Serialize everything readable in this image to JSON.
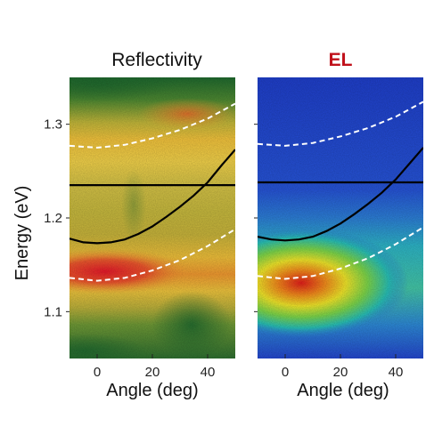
{
  "chart_data": [
    {
      "type": "heatmap",
      "title": "Reflectivity",
      "title_color": "#111111",
      "xlabel": "Angle (deg)",
      "ylabel": "Energy (eV)",
      "xlim": [
        -10,
        50
      ],
      "ylim": [
        1.05,
        1.35
      ],
      "xticks": [
        0,
        20,
        40
      ],
      "yticks": [
        1.1,
        1.2,
        1.3
      ],
      "ytick_labels": [
        "1.1",
        "1.2",
        "1.3"
      ],
      "colormap": "green-yellow-red",
      "background_color": "#1f6a2e",
      "grid": false,
      "curves": [
        {
          "name": "",
          "style": "dashed",
          "color": "#ffffff",
          "x": [
            -10,
            0,
            10,
            20,
            30,
            40,
            50
          ],
          "y": [
            1.277,
            1.275,
            1.278,
            1.285,
            1.294,
            1.306,
            1.322
          ]
        },
        {
          "name": "",
          "style": "solid",
          "color": "#000000",
          "x": [
            -10,
            0,
            10,
            20,
            30,
            40,
            50
          ],
          "y": [
            1.235,
            1.235,
            1.235,
            1.235,
            1.235,
            1.235,
            1.235
          ]
        },
        {
          "name": "",
          "style": "solid",
          "color": "#000000",
          "x": [
            -10,
            -5,
            0,
            5,
            10,
            15,
            20,
            25,
            30,
            35,
            40,
            45,
            50
          ],
          "y": [
            1.178,
            1.174,
            1.173,
            1.174,
            1.177,
            1.183,
            1.191,
            1.201,
            1.212,
            1.224,
            1.238,
            1.256,
            1.273
          ]
        },
        {
          "name": "",
          "style": "dashed",
          "color": "#ffffff",
          "x": [
            -10,
            0,
            10,
            20,
            30,
            40,
            50
          ],
          "y": [
            1.136,
            1.133,
            1.136,
            1.144,
            1.155,
            1.17,
            1.188
          ]
        }
      ]
    },
    {
      "type": "heatmap",
      "title": "EL",
      "title_color": "#c0101a",
      "xlabel": "Angle (deg)",
      "ylabel": "",
      "xlim": [
        -10,
        50
      ],
      "ylim": [
        1.05,
        1.35
      ],
      "xticks": [
        0,
        20,
        40
      ],
      "yticks": [
        1.1,
        1.2,
        1.3
      ],
      "ytick_labels": [
        "",
        "",
        ""
      ],
      "colormap": "jet",
      "background_color": "#1d3fc8",
      "grid": false,
      "curves": [
        {
          "name": "",
          "style": "dashed",
          "color": "#ffffff",
          "x": [
            -10,
            0,
            10,
            20,
            30,
            40,
            50
          ],
          "y": [
            1.279,
            1.277,
            1.28,
            1.287,
            1.296,
            1.308,
            1.324
          ]
        },
        {
          "name": "",
          "style": "solid",
          "color": "#000000",
          "x": [
            -10,
            0,
            10,
            20,
            30,
            40,
            50
          ],
          "y": [
            1.238,
            1.238,
            1.238,
            1.238,
            1.238,
            1.238,
            1.238
          ]
        },
        {
          "name": "",
          "style": "solid",
          "color": "#000000",
          "x": [
            -10,
            -5,
            0,
            5,
            10,
            15,
            20,
            25,
            30,
            35,
            40,
            45,
            50
          ],
          "y": [
            1.18,
            1.177,
            1.176,
            1.177,
            1.18,
            1.186,
            1.194,
            1.204,
            1.215,
            1.227,
            1.241,
            1.258,
            1.275
          ]
        },
        {
          "name": "",
          "style": "dashed",
          "color": "#ffffff",
          "x": [
            -10,
            0,
            10,
            20,
            30,
            40,
            50
          ],
          "y": [
            1.138,
            1.135,
            1.138,
            1.146,
            1.157,
            1.172,
            1.19
          ]
        }
      ]
    }
  ]
}
